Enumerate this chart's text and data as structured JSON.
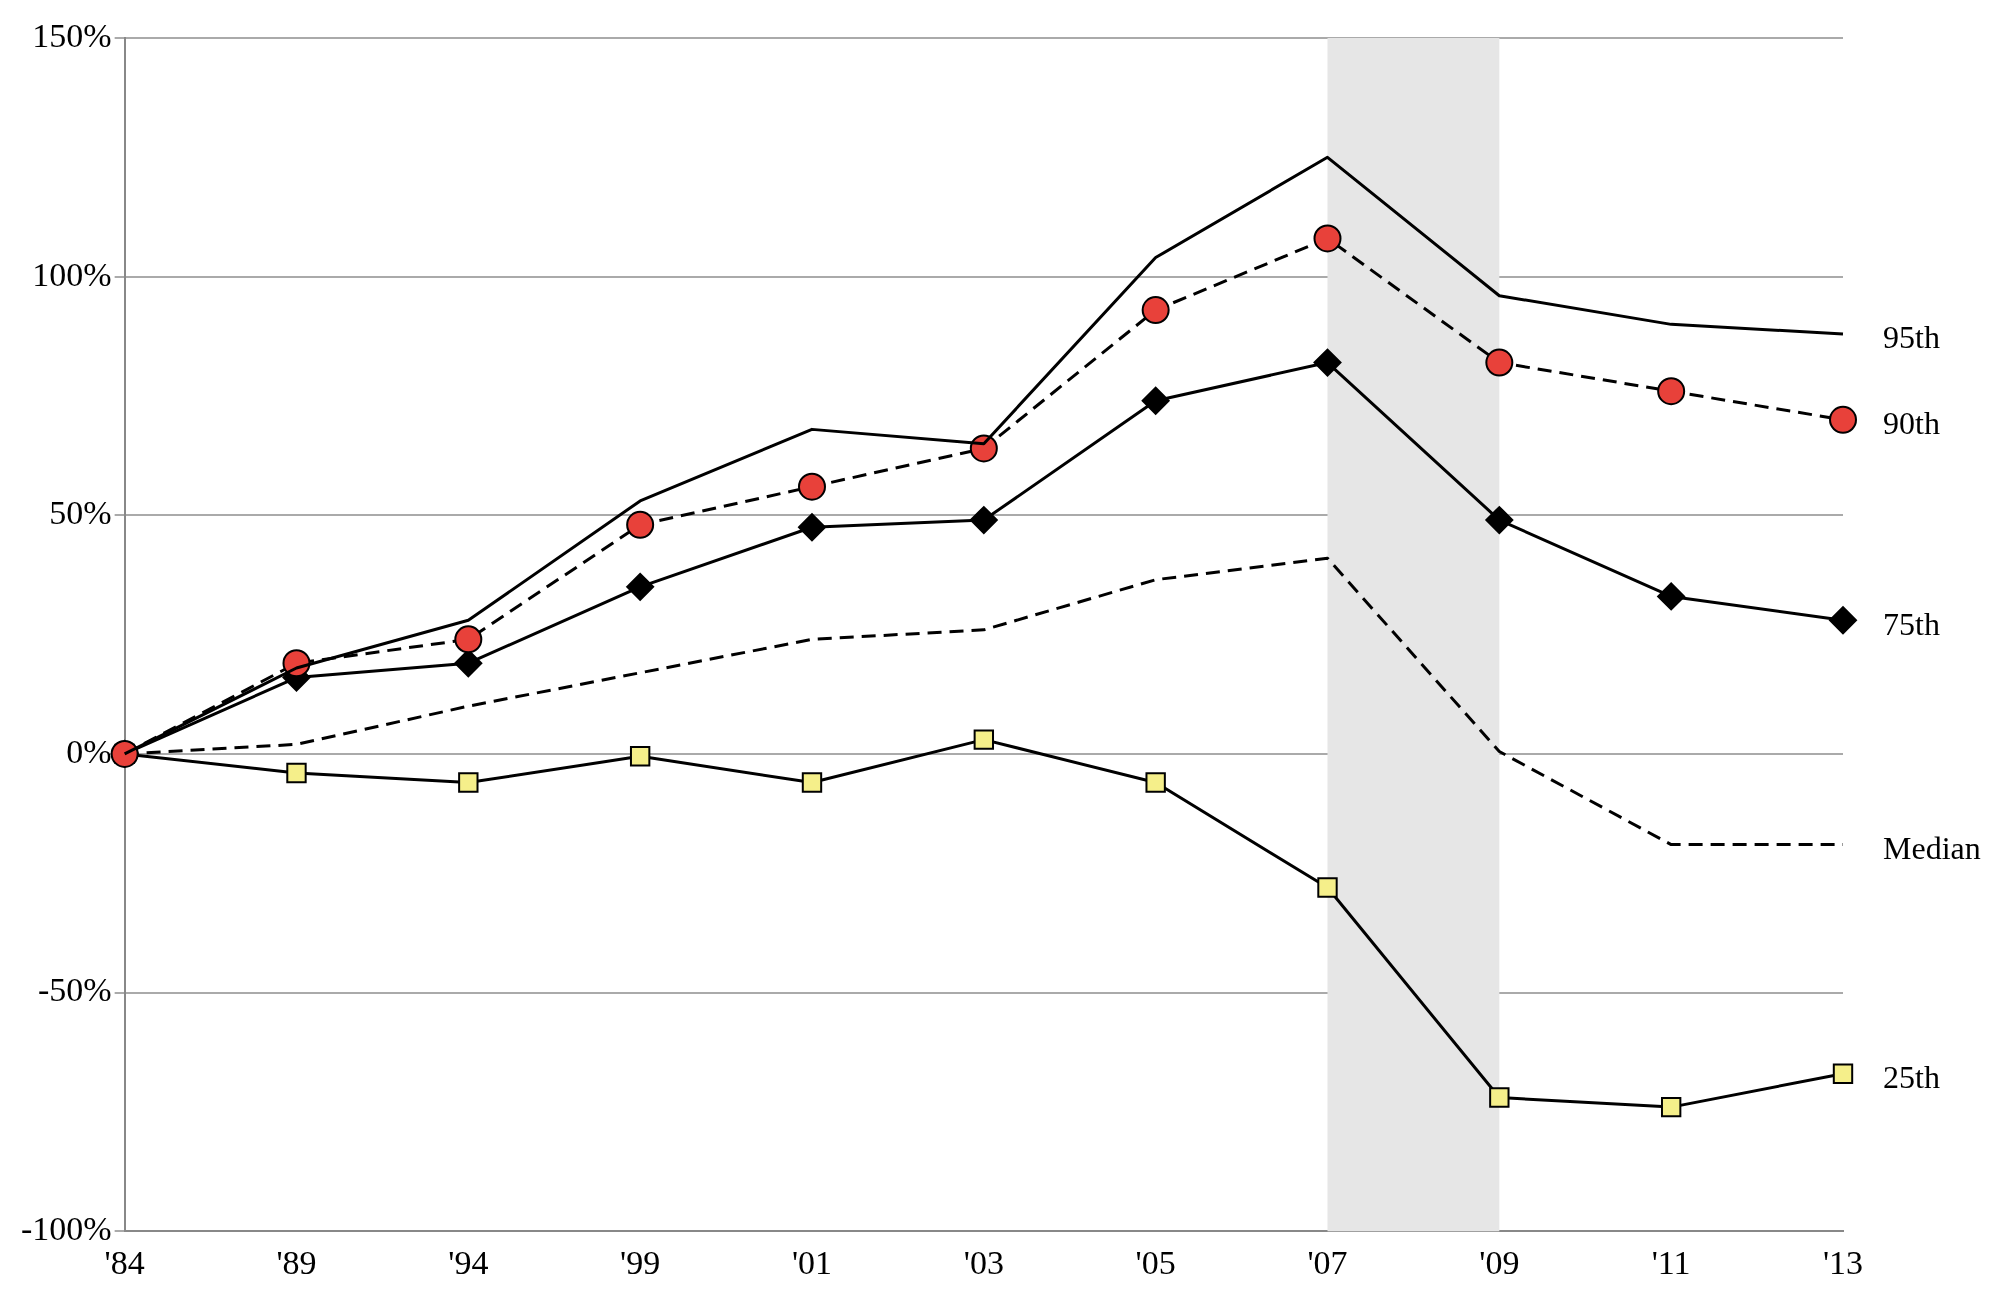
{
  "chart_data": {
    "type": "line",
    "categories": [
      "'84",
      "'89",
      "'94",
      "'99",
      "'01",
      "'03",
      "'05",
      "'07",
      "'09",
      "'11",
      "'13"
    ],
    "series": [
      {
        "name": "95th",
        "color": "#000000",
        "line_style": "solid",
        "marker": "none",
        "values": [
          0,
          18,
          28,
          53,
          68,
          65,
          104,
          125,
          96,
          90,
          88
        ]
      },
      {
        "name": "90th",
        "color": "#e8413a",
        "line_style": "dashed",
        "marker": "circle",
        "values": [
          0,
          19,
          24,
          48,
          56,
          64,
          93,
          108,
          82,
          76,
          70
        ]
      },
      {
        "name": "75th",
        "color": "#000000",
        "line_style": "solid",
        "marker": "diamond",
        "values": [
          0,
          16,
          19,
          35,
          47.5,
          49,
          74,
          82,
          49,
          33,
          28
        ]
      },
      {
        "name": "Median",
        "color": "#000000",
        "line_style": "dashed",
        "marker": "none",
        "values": [
          0,
          2,
          10,
          17,
          24,
          26,
          36.5,
          41,
          0.5,
          -19,
          -19
        ]
      },
      {
        "name": "25th",
        "color": "#f5ef8a",
        "line_style": "solid",
        "marker": "square",
        "values": [
          0,
          -4,
          -6,
          -0.5,
          -6,
          3,
          -6,
          -28,
          -72,
          -74,
          -67
        ]
      }
    ],
    "ylim": [
      -100,
      150
    ],
    "yticks": [
      {
        "value": -100,
        "label": "-100%"
      },
      {
        "value": -50,
        "label": "-50%"
      },
      {
        "value": 0,
        "label": "0%"
      },
      {
        "value": 50,
        "label": "50%"
      },
      {
        "value": 100,
        "label": "100%"
      },
      {
        "value": 150,
        "label": "150%"
      }
    ],
    "grid": "y",
    "bands": [
      {
        "axis": "x",
        "from": "'07",
        "to": "'09",
        "color": "#e6e6e6"
      }
    ]
  }
}
